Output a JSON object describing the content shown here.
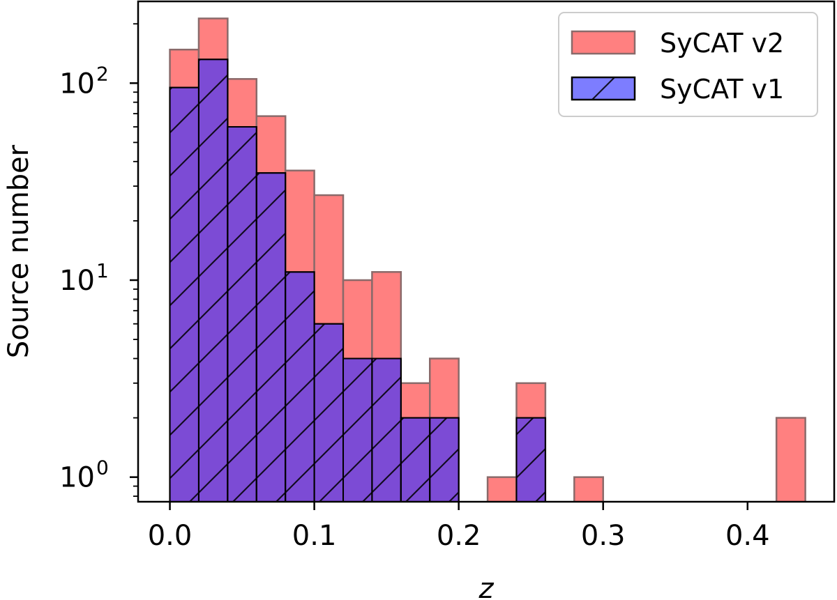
{
  "chart_data": {
    "type": "bar",
    "subtype": "histogram",
    "title": "",
    "xlabel": "z",
    "ylabel": "Source number",
    "yscale": "log",
    "xlim": [
      -0.022,
      0.46
    ],
    "ylim": [
      0.75,
      260
    ],
    "x_ticks": [
      0.0,
      0.1,
      0.2,
      0.3,
      0.4
    ],
    "x_tick_labels": [
      "0.0",
      "0.1",
      "0.2",
      "0.3",
      "0.4"
    ],
    "y_ticks": [
      1,
      10,
      100
    ],
    "y_tick_labels": [
      {
        "base": "10",
        "exp": "0"
      },
      {
        "base": "10",
        "exp": "1"
      },
      {
        "base": "10",
        "exp": "2"
      }
    ],
    "bin_width": 0.02,
    "legend_position": "top-right",
    "series": [
      {
        "name": "SyCAT v2",
        "color": "#ff8080",
        "edge_color": "#8a6a6a",
        "hatch": false,
        "bins": [
          {
            "x0": 0.0,
            "value": 148
          },
          {
            "x0": 0.02,
            "value": 213
          },
          {
            "x0": 0.04,
            "value": 105
          },
          {
            "x0": 0.06,
            "value": 68
          },
          {
            "x0": 0.08,
            "value": 36
          },
          {
            "x0": 0.1,
            "value": 27
          },
          {
            "x0": 0.12,
            "value": 10
          },
          {
            "x0": 0.14,
            "value": 11
          },
          {
            "x0": 0.16,
            "value": 3
          },
          {
            "x0": 0.18,
            "value": 4
          },
          {
            "x0": 0.22,
            "value": 1
          },
          {
            "x0": 0.24,
            "value": 3
          },
          {
            "x0": 0.28,
            "value": 1
          },
          {
            "x0": 0.42,
            "value": 2
          }
        ]
      },
      {
        "name": "SyCAT v1",
        "color": "#7d7dff",
        "edge_color": "#000000",
        "hatch": true,
        "bins": [
          {
            "x0": 0.0,
            "value": 95
          },
          {
            "x0": 0.02,
            "value": 132
          },
          {
            "x0": 0.04,
            "value": 60
          },
          {
            "x0": 0.06,
            "value": 35
          },
          {
            "x0": 0.08,
            "value": 11
          },
          {
            "x0": 0.1,
            "value": 6
          },
          {
            "x0": 0.12,
            "value": 4
          },
          {
            "x0": 0.14,
            "value": 4
          },
          {
            "x0": 0.16,
            "value": 2
          },
          {
            "x0": 0.18,
            "value": 2
          },
          {
            "x0": 0.24,
            "value": 2
          }
        ]
      }
    ]
  }
}
